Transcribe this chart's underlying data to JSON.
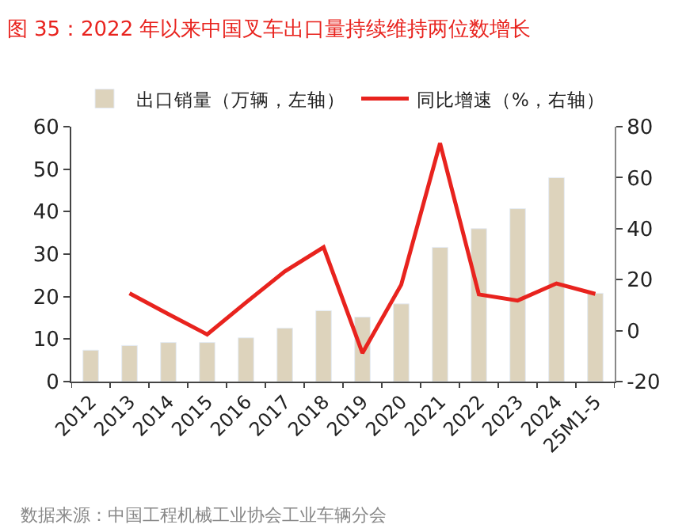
{
  "chart_data": {
    "type": "bar",
    "title": "图 35：2022 年以来中国叉车出口量持续维持两位数增长",
    "categories": [
      "2012",
      "2013",
      "2014",
      "2015",
      "2016",
      "2017",
      "2018",
      "2019",
      "2020",
      "2021",
      "2022",
      "2023",
      "2024",
      "25M1-5"
    ],
    "series": [
      {
        "name": "出口销量（万辆，左轴）",
        "color": "#ddd3bc",
        "values": [
          7.4,
          8.5,
          9.2,
          9.2,
          10.3,
          12.6,
          16.7,
          15.2,
          18.3,
          31.6,
          36,
          40.7,
          48,
          20.8
        ]
      },
      {
        "name": "同比增速（%，右轴）",
        "type": "line",
        "axis": "y2",
        "color": "#e8231e",
        "values": [
          null,
          14.6,
          6.5,
          -1.5,
          11,
          23.2,
          32.7,
          -8.8,
          18,
          73.5,
          14.2,
          11.8,
          18.5,
          14.4
        ]
      }
    ],
    "ylim": [
      0,
      60
    ],
    "yticks": [
      0,
      10,
      20,
      30,
      40,
      50,
      60
    ],
    "y2lim": [
      -20,
      80
    ],
    "y2ticks": [
      -20,
      0,
      20,
      40,
      60,
      80
    ],
    "legend": "top",
    "marker": "none",
    "line_style": "solid",
    "annotations": [
      "数据来源：中国工程机械工业协会工业车辆分会"
    ]
  }
}
